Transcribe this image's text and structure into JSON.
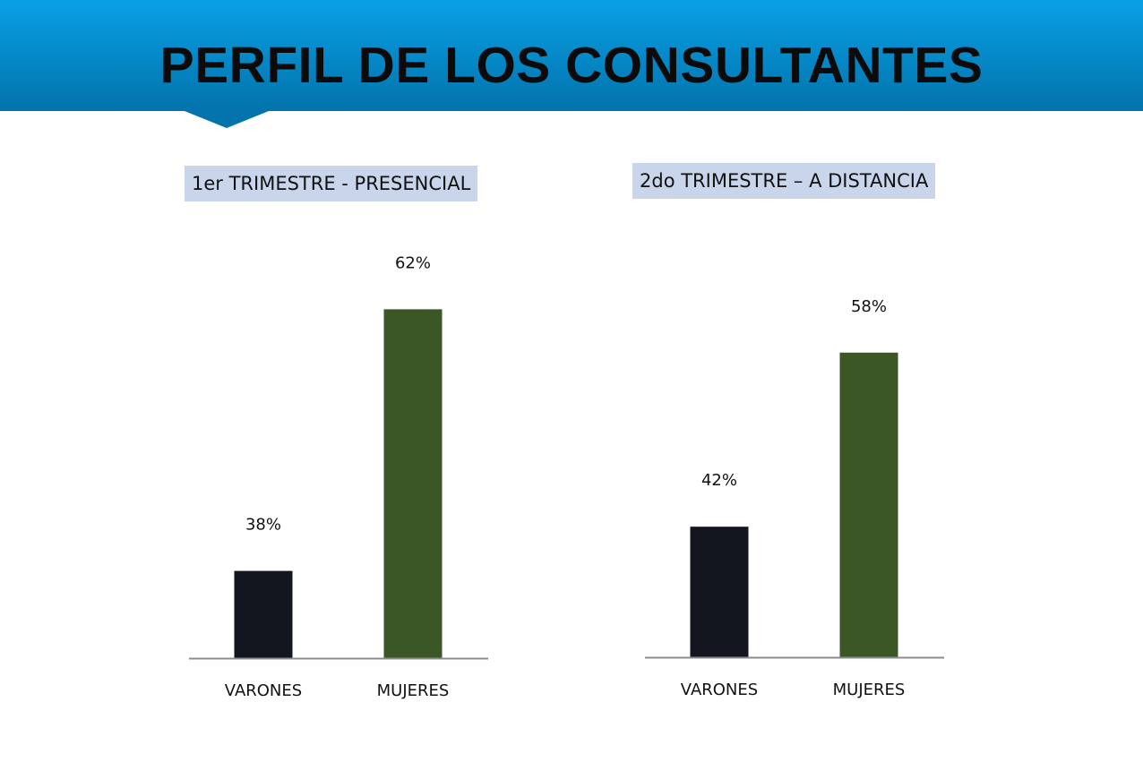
{
  "header": {
    "title": "PERFIL DE LOS CONSULTANTES"
  },
  "colors": {
    "banner": "#0587c6",
    "varones": "#13161e",
    "mujeres": "#3c5726",
    "title_box": "#c9d5ea",
    "axis": "#8c8c8c"
  },
  "chart_data": [
    {
      "type": "bar",
      "title": "1er TRIMESTRE - PRESENCIAL",
      "categories": [
        "VARONES",
        "MUJERES"
      ],
      "values": [
        38,
        62
      ],
      "value_labels": [
        "38%",
        "62%"
      ],
      "ylim": [
        30,
        70
      ],
      "grid": false,
      "legend": "none"
    },
    {
      "type": "bar",
      "title": "2do TRIMESTRE – A DISTANCIA",
      "categories": [
        "VARONES",
        "MUJERES"
      ],
      "values": [
        42,
        58
      ],
      "value_labels": [
        "42%",
        "58%"
      ],
      "ylim": [
        30,
        70
      ],
      "grid": false,
      "legend": "none"
    }
  ]
}
